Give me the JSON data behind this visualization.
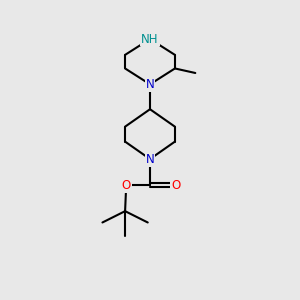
{
  "bg_color": "#e8e8e8",
  "bond_color": "#000000",
  "bond_width": 1.5,
  "N_color": "#0000cc",
  "NH_color": "#009090",
  "O_color": "#ff0000",
  "font_size_atom": 8.5,
  "fig_width": 3.0,
  "fig_height": 3.0,
  "dpi": 100,
  "xlim": [
    0,
    10
  ],
  "ylim": [
    0,
    13
  ]
}
